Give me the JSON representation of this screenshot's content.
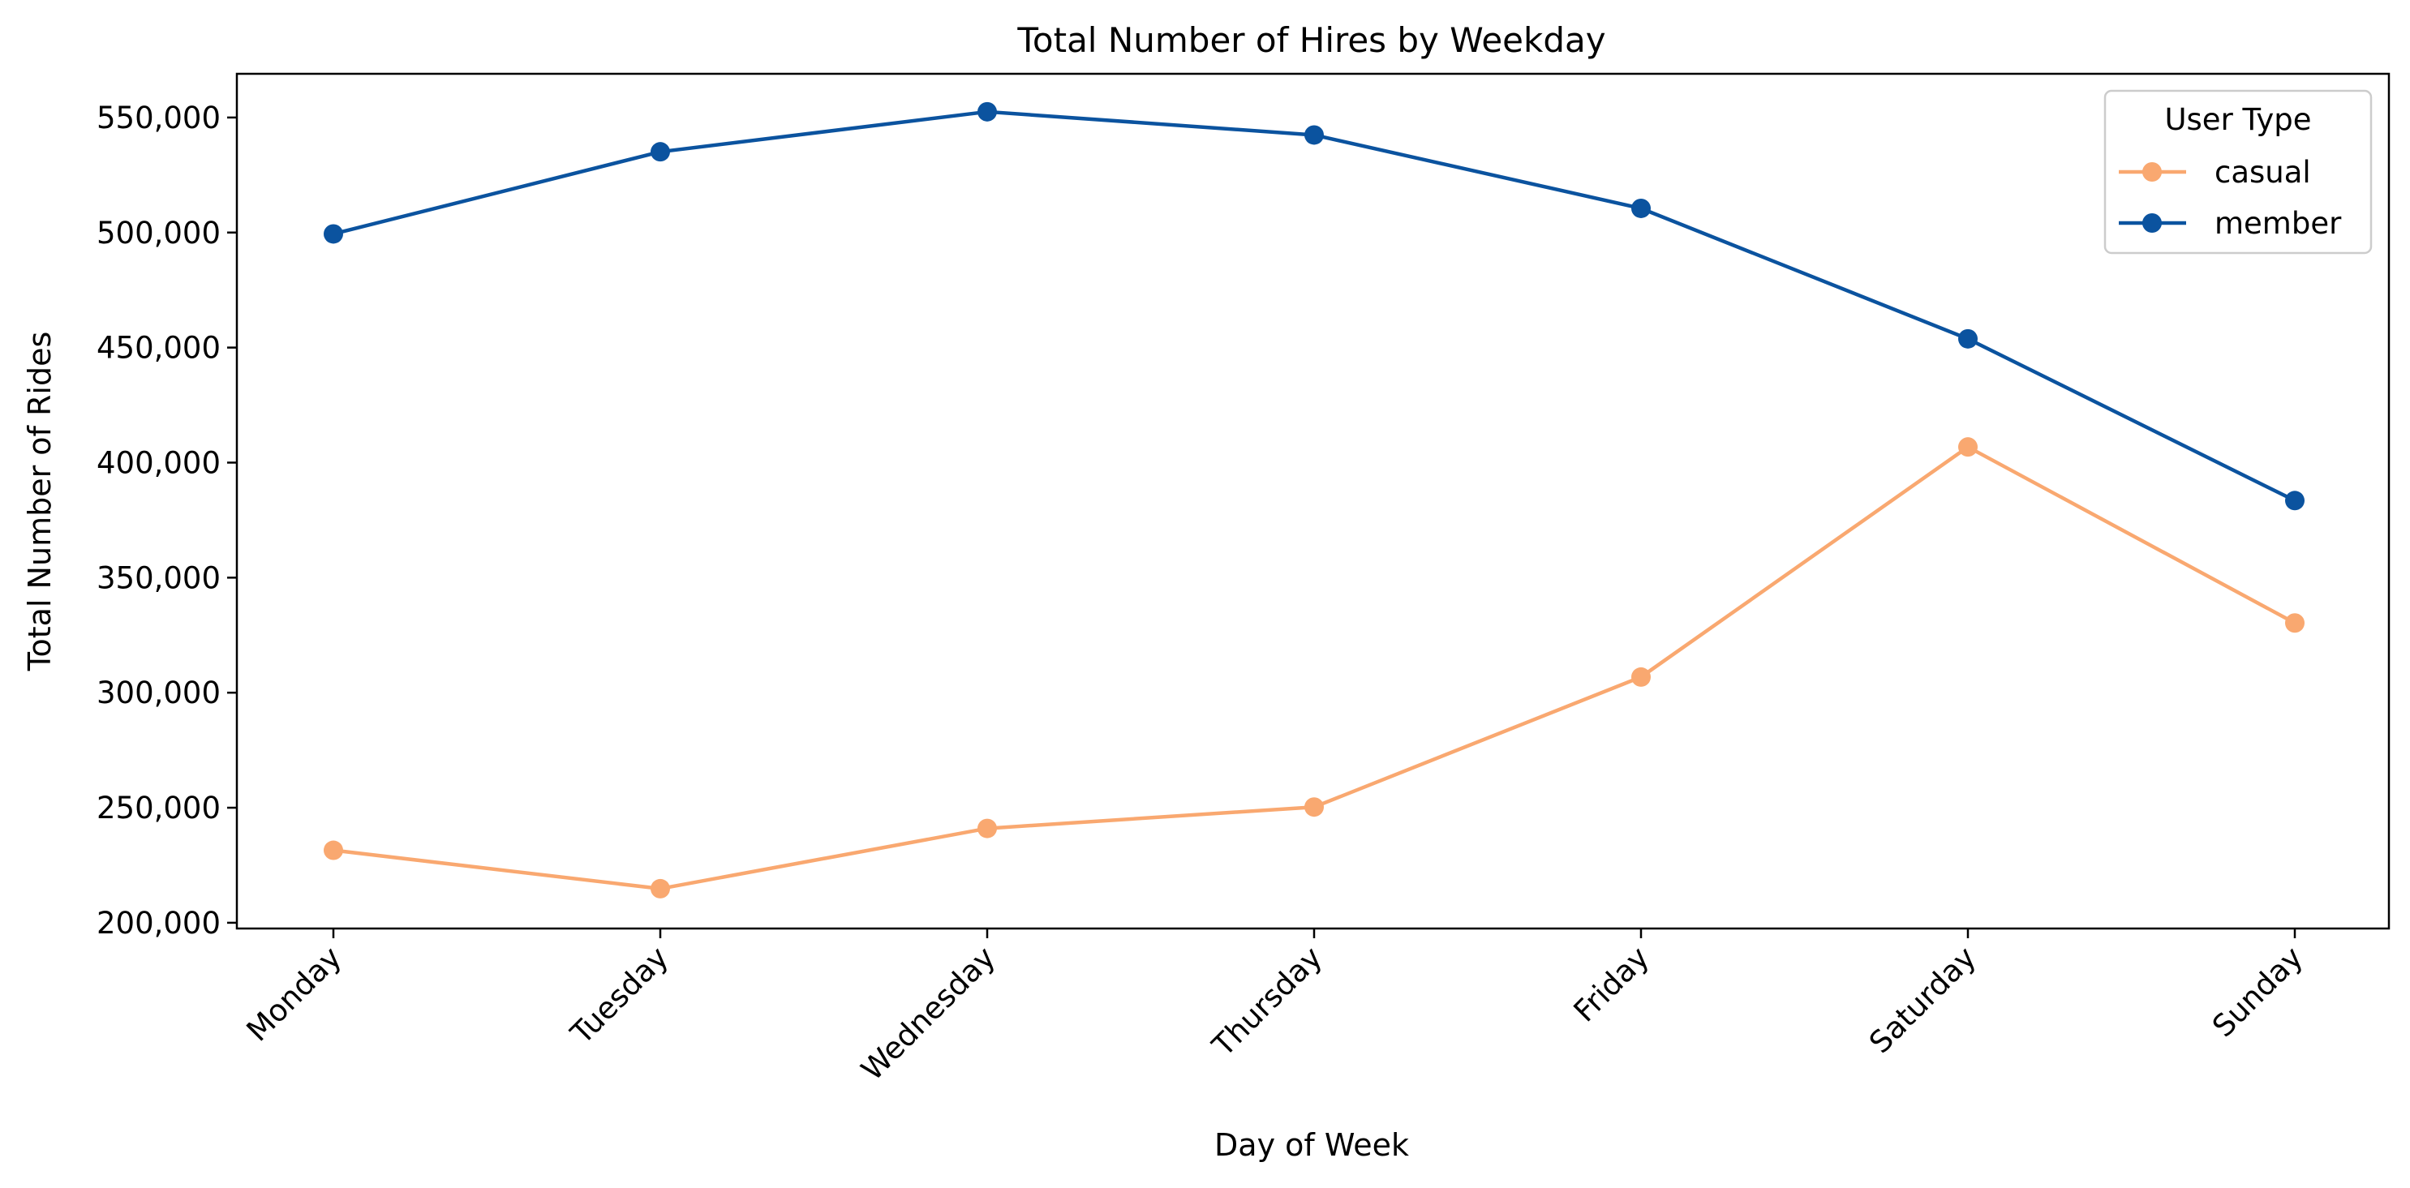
{
  "chart_data": {
    "type": "line",
    "title": "Total Number of Hires by Weekday",
    "xlabel": "Day of Week",
    "ylabel": "Total Number of Rides",
    "categories": [
      "Monday",
      "Tuesday",
      "Wednesday",
      "Thursday",
      "Friday",
      "Saturday",
      "Sunday"
    ],
    "series": [
      {
        "name": "casual",
        "color": "#f9a870",
        "values": [
          231500,
          214800,
          241000,
          250300,
          306800,
          406800,
          330300
        ]
      },
      {
        "name": "member",
        "color": "#0b539f",
        "values": [
          499400,
          535100,
          552500,
          542400,
          510500,
          453800,
          383500
        ]
      }
    ],
    "ylim": [
      197500,
      569000
    ],
    "yticks": [
      200000,
      250000,
      300000,
      350000,
      400000,
      450000,
      500000,
      550000
    ],
    "ytick_labels": [
      "200,000",
      "250,000",
      "300,000",
      "350,000",
      "400,000",
      "450,000",
      "500,000",
      "550,000"
    ],
    "grid": false,
    "legend": {
      "title": "User Type",
      "placement": "top-right"
    }
  }
}
